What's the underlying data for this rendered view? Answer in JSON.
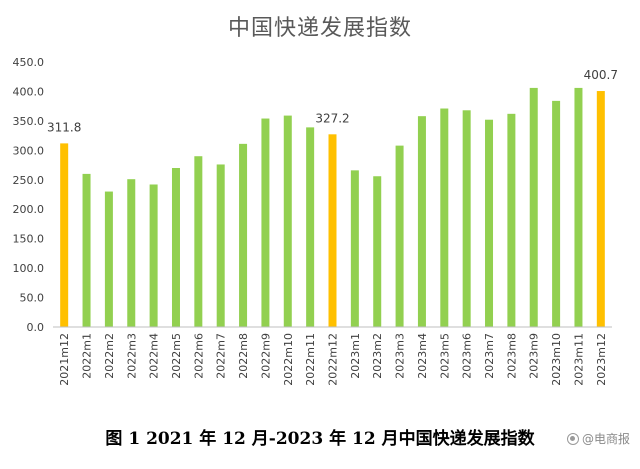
{
  "chart_data": {
    "type": "bar",
    "title": "中国快递发展指数",
    "categories": [
      "2021m12",
      "2022m1",
      "2022m2",
      "2022m3",
      "2022m4",
      "2022m5",
      "2022m6",
      "2022m7",
      "2022m8",
      "2022m9",
      "2022m10",
      "2022m11",
      "2022m12",
      "2023m1",
      "2023m2",
      "2023m3",
      "2023m4",
      "2023m5",
      "2023m6",
      "2023m7",
      "2023m8",
      "2023m9",
      "2023m10",
      "2023m11",
      "2023m12"
    ],
    "values": [
      311.8,
      260,
      230,
      251,
      242,
      270,
      290,
      276,
      311,
      354,
      359,
      339,
      327.2,
      266,
      256,
      308,
      358,
      371,
      368,
      352,
      362,
      406,
      384,
      406,
      400.7
    ],
    "highlight_indices": [
      0,
      12,
      24
    ],
    "data_labels": [
      {
        "index": 0,
        "text": "311.8"
      },
      {
        "index": 12,
        "text": "327.2"
      },
      {
        "index": 24,
        "text": "400.7"
      }
    ],
    "ylim": [
      0,
      450
    ],
    "yticks": [
      "0.0",
      "50.0",
      "100.0",
      "150.0",
      "200.0",
      "250.0",
      "300.0",
      "350.0",
      "400.0",
      "450.0"
    ],
    "ytick_values": [
      0,
      50,
      100,
      150,
      200,
      250,
      300,
      350,
      400,
      450
    ],
    "xlabel": "",
    "ylabel": "",
    "grid": false,
    "legend": "none",
    "colors": {
      "normal": "#92d050",
      "highlight": "#ffc000",
      "axis": "#bfbfbf",
      "text": "#404040"
    }
  },
  "caption": "图 1 2021 年 12 月-2023 年 12 月中国快递发展指数",
  "watermark": "@电商报",
  "watermark_icon": "circle-logo-icon"
}
